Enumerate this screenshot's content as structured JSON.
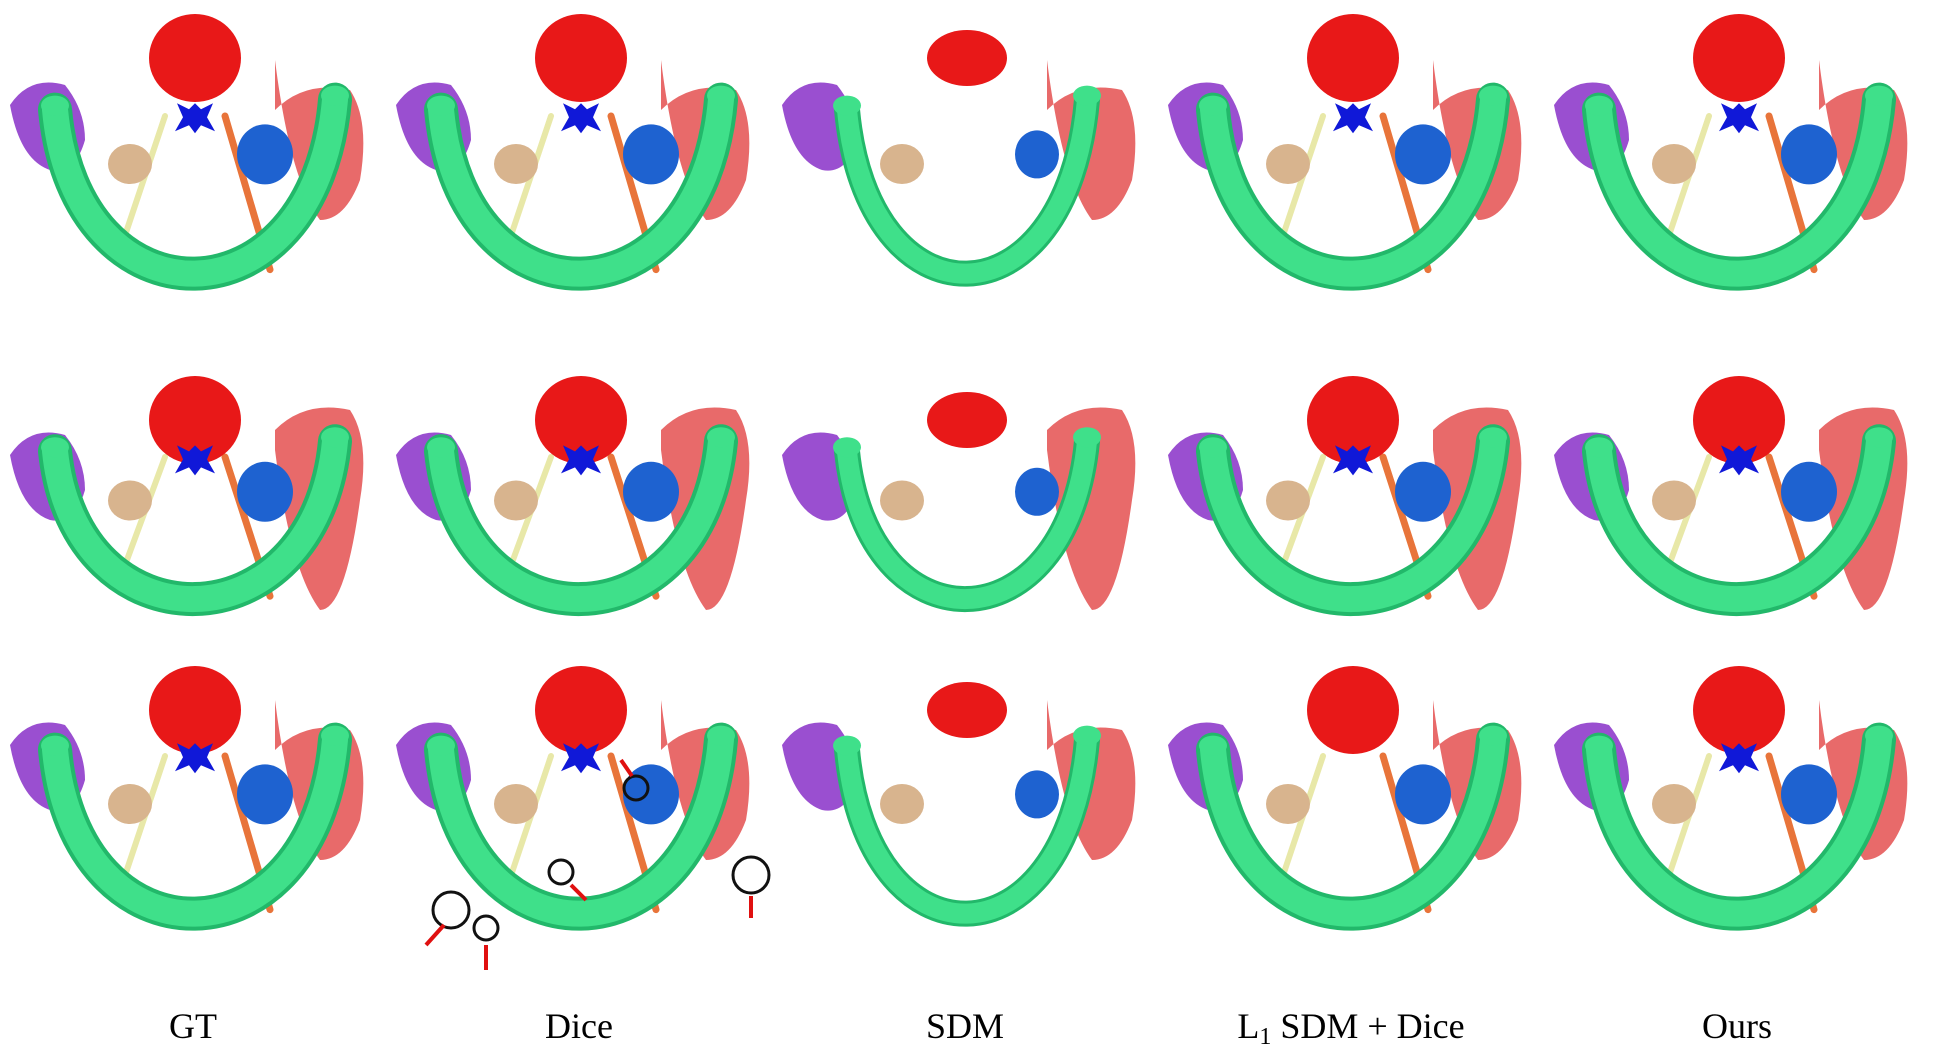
{
  "columns": [
    {
      "label": "GT"
    },
    {
      "label": "Dice"
    },
    {
      "label": "SDM"
    },
    {
      "label_main": "L",
      "label_sub": "1",
      "label_rest": " SDM + Dice"
    },
    {
      "label": "Ours"
    }
  ],
  "colors": {
    "mandible": "#3fe08a",
    "mandible_dark": "#22b86a",
    "top_blob": "#e81818",
    "left_blob": "#9a4fd0",
    "right_blob": "#e86a6a",
    "center_blue": "#1018d8",
    "inner_blue": "#1e62d0",
    "tan": "#d8b48e",
    "orange_line": "#e8743a",
    "yellow_line": "#e8e8a8",
    "annotation_arrow": "#e01010",
    "annotation_circle": "#111111"
  },
  "structure_icons": [
    "mandible-shape",
    "red-blob",
    "purple-blob",
    "pink-blob",
    "blue-blob",
    "tan-blob",
    "blue-x-shape"
  ]
}
